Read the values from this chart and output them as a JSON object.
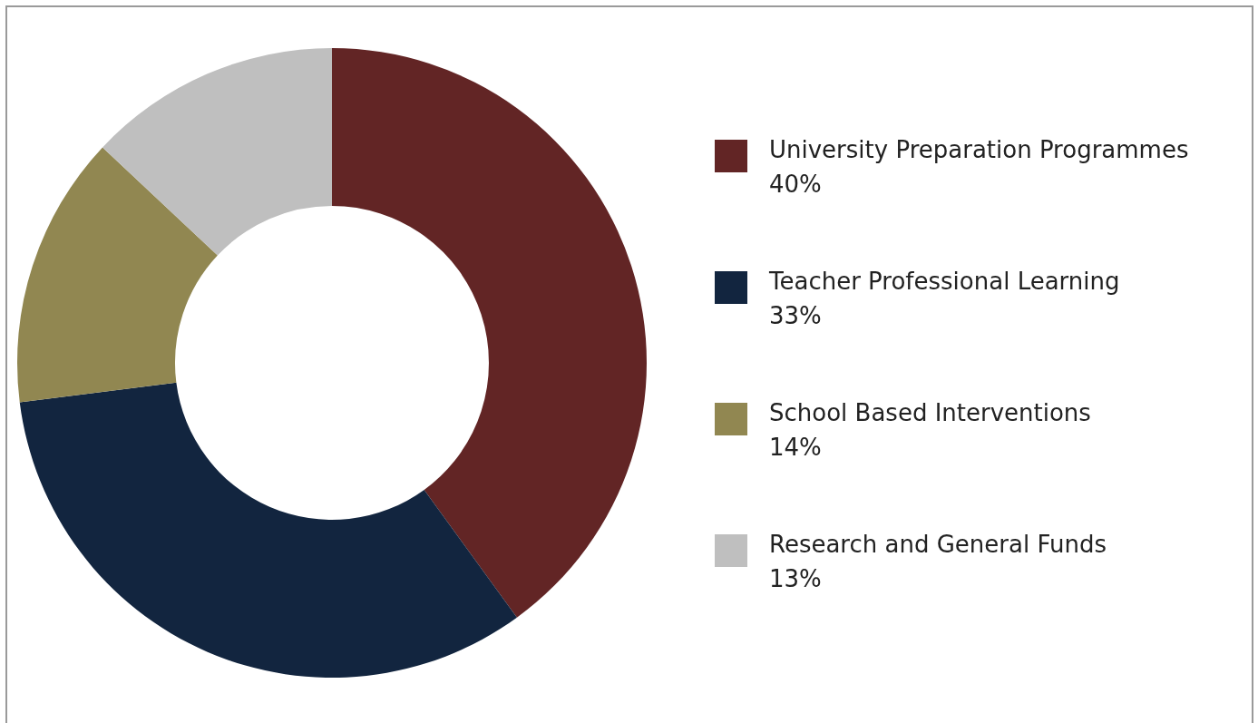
{
  "chart_data": {
    "type": "donut",
    "categories": [
      "University Preparation Programmes",
      "Teacher Professional Learning",
      "School Based Interventions",
      "Research and General Funds"
    ],
    "values": [
      40,
      33,
      14,
      13
    ],
    "value_labels": [
      "40%",
      "33%",
      "14%",
      "13%"
    ],
    "colors": [
      "#622525",
      "#12253f",
      "#918751",
      "#bfbfbf"
    ],
    "legend": "right"
  }
}
